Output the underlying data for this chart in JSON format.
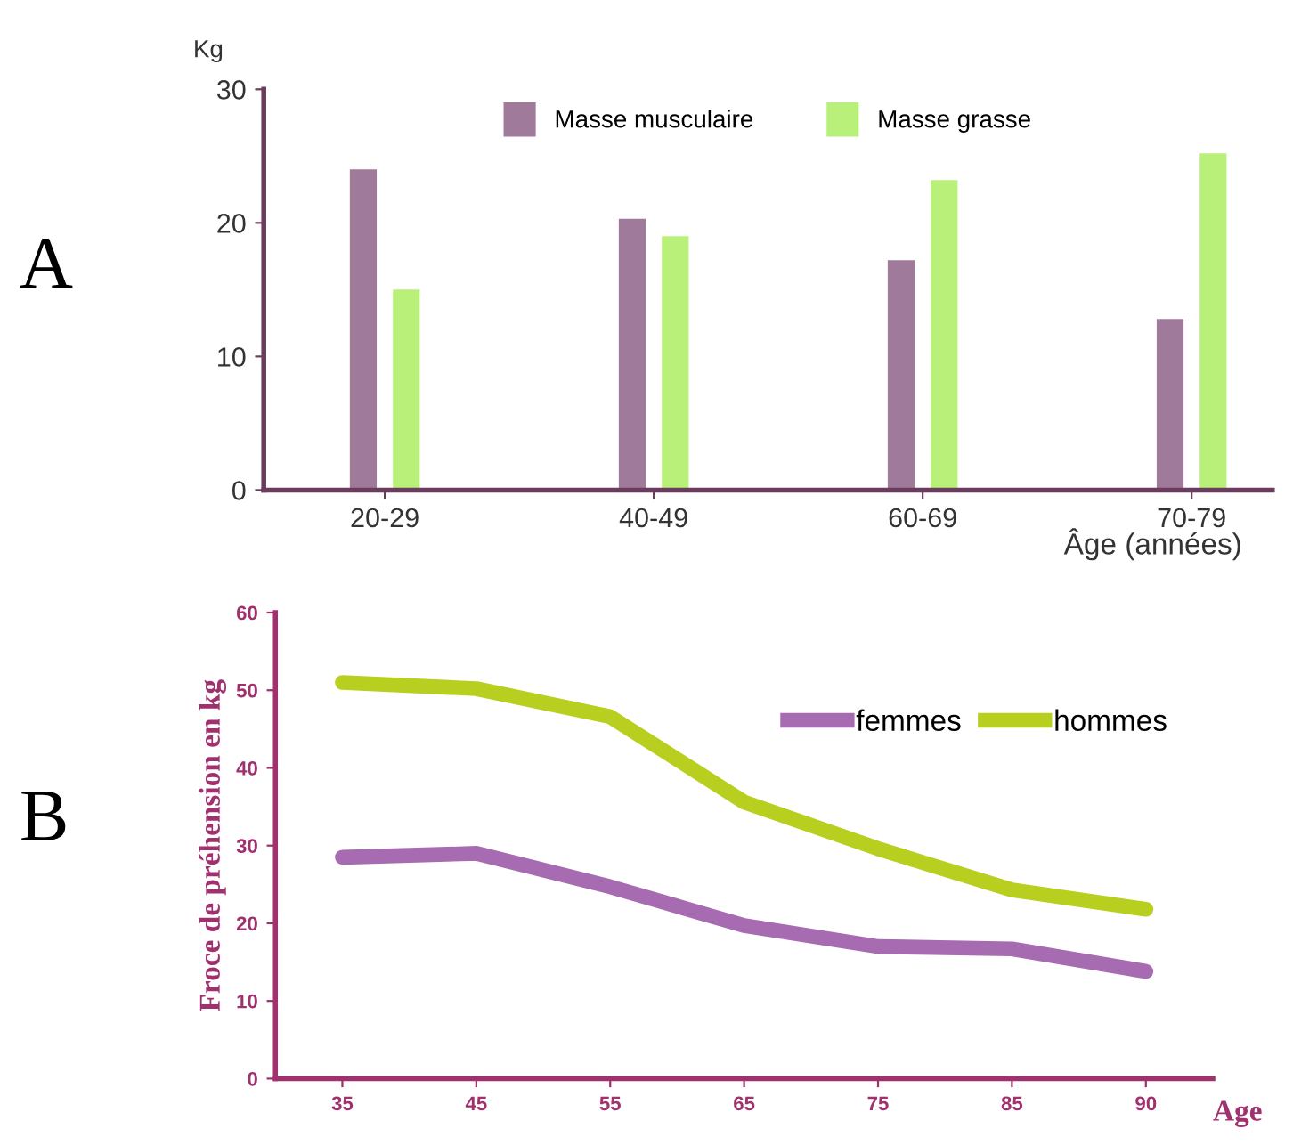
{
  "chart_data": [
    {
      "type": "bar",
      "title": "A",
      "categories": [
        "20-29",
        "40-49",
        "60-69",
        "70-79"
      ],
      "ylabel": "Kg",
      "xlabel": "Âge (années)",
      "ylim": [
        0,
        30
      ],
      "yticks": [
        0,
        10,
        20,
        30
      ],
      "legend": "top",
      "grid": false,
      "series": [
        {
          "name": "Masse musculaire",
          "color": "#a07a9a",
          "values": [
            24,
            20.3,
            17.2,
            12.8
          ]
        },
        {
          "name": "Masse grasse",
          "color": "#b8f07a",
          "values": [
            15,
            19,
            23.2,
            25.2
          ]
        }
      ]
    },
    {
      "type": "line",
      "title": "B",
      "categories": [
        "35",
        "45",
        "55",
        "65",
        "75",
        "85",
        "90"
      ],
      "ylabel": "Froce de préhension en kg",
      "xlabel": "Age",
      "ylim": [
        0,
        60
      ],
      "yticks": [
        0,
        10,
        20,
        30,
        40,
        50,
        60
      ],
      "legend": "top right",
      "grid": false,
      "marker": "none",
      "series": [
        {
          "name": "femmes",
          "color": "#a66bb0",
          "values": [
            28.5,
            29,
            24.7,
            19.7,
            17,
            16.7,
            13.8
          ]
        },
        {
          "name": "hommes",
          "color": "#b8cf1f",
          "values": [
            51,
            50.2,
            46.6,
            35.6,
            29.6,
            24.3,
            21.8
          ]
        }
      ]
    }
  ]
}
